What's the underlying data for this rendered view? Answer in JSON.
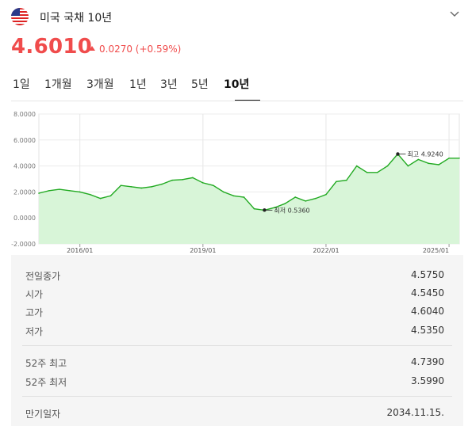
{
  "header": {
    "title": "미국 국채 10년"
  },
  "quote": {
    "price": "4.6010",
    "change": "0.0270 (+0.59%)"
  },
  "tabs": [
    "1일",
    "1개월",
    "3개월",
    "1년",
    "3년",
    "5년",
    "10년"
  ],
  "active_tab": "10년",
  "colors": {
    "up": "#f04c4c",
    "line": "#22aa22",
    "fill": "#d8f5d8",
    "ink": "#222222"
  },
  "chart_data": {
    "type": "area",
    "y_ticks": [
      "8.0000",
      "6.0000",
      "4.0000",
      "2.0000",
      "0.0000",
      "-2.0000"
    ],
    "ylim": [
      -2,
      8
    ],
    "x_ticks": [
      "2016/01",
      "2019/01",
      "2022/01",
      "2025/01"
    ],
    "grid": true,
    "annotations": {
      "high": "최고 4.9240",
      "low": "최저 0.5360"
    },
    "x": [
      "2015/01",
      "2015/04",
      "2015/07",
      "2015/10",
      "2016/01",
      "2016/04",
      "2016/07",
      "2016/10",
      "2017/01",
      "2017/04",
      "2017/07",
      "2017/10",
      "2018/01",
      "2018/04",
      "2018/07",
      "2018/10",
      "2019/01",
      "2019/04",
      "2019/07",
      "2019/10",
      "2020/01",
      "2020/04",
      "2020/07",
      "2020/10",
      "2021/01",
      "2021/04",
      "2021/07",
      "2021/10",
      "2022/01",
      "2022/04",
      "2022/07",
      "2022/10",
      "2023/01",
      "2023/04",
      "2023/07",
      "2023/10",
      "2024/01",
      "2024/04",
      "2024/07",
      "2024/10",
      "2025/01",
      "2025/04"
    ],
    "values": [
      1.9,
      2.1,
      2.2,
      2.1,
      2.0,
      1.8,
      1.5,
      1.7,
      2.5,
      2.4,
      2.3,
      2.4,
      2.6,
      2.9,
      2.95,
      3.1,
      2.7,
      2.5,
      2.0,
      1.7,
      1.6,
      0.7,
      0.6,
      0.8,
      1.1,
      1.6,
      1.3,
      1.5,
      1.8,
      2.8,
      2.9,
      4.0,
      3.5,
      3.5,
      4.0,
      4.92,
      4.0,
      4.5,
      4.2,
      4.1,
      4.6,
      4.6
    ]
  },
  "stats": {
    "prev_close": {
      "label": "전일종가",
      "value": "4.5750"
    },
    "open": {
      "label": "시가",
      "value": "4.5450"
    },
    "high": {
      "label": "고가",
      "value": "4.6040"
    },
    "low": {
      "label": "저가",
      "value": "4.5350"
    },
    "w52_high": {
      "label": "52주 최고",
      "value": "4.7390"
    },
    "w52_low": {
      "label": "52주 최저",
      "value": "3.5990"
    },
    "maturity": {
      "label": "만기일자",
      "value": "2034.11.15."
    }
  }
}
